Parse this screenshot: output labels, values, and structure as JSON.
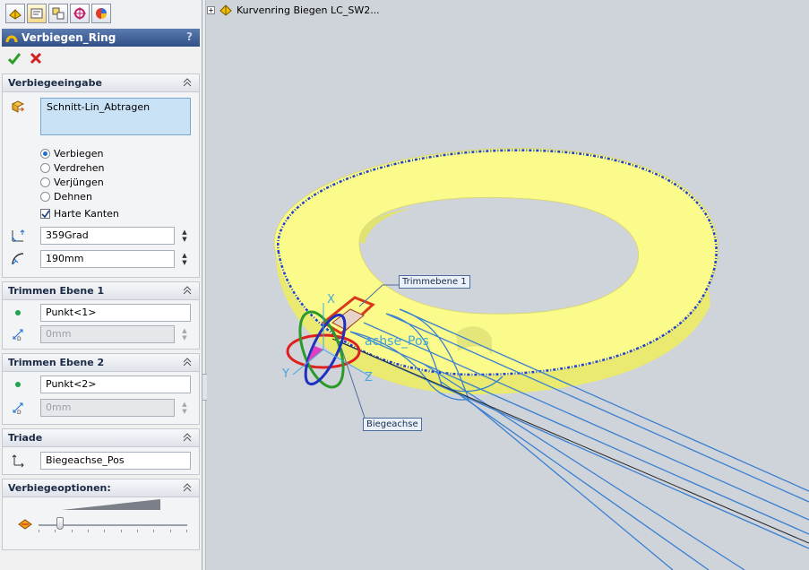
{
  "panel": {
    "title": "Verbiegen_Ring",
    "help": "?",
    "tabs": [
      "feature-manager",
      "property-manager",
      "configuration-manager",
      "dimxpert-manager",
      "display-manager"
    ],
    "groups": {
      "bend_input": {
        "title": "Verbiegeeingabe",
        "body_selection": "Schnitt-Lin_Abtragen",
        "options": [
          "Verbiegen",
          "Verdrehen",
          "Verjüngen",
          "Dehnen"
        ],
        "selected_option": "Verbiegen",
        "hard_edges_label": "Harte Kanten",
        "hard_edges_checked": true,
        "angle_value": "359Grad",
        "radius_value": "190mm"
      },
      "trim_plane_1": {
        "title": "Trimmen Ebene 1",
        "point": "Punkt<1>",
        "distance": "0mm"
      },
      "trim_plane_2": {
        "title": "Trimmen Ebene 2",
        "point": "Punkt<2>",
        "distance": "0mm"
      },
      "triad": {
        "title": "Triade",
        "reference": "Biegeachse_Pos"
      },
      "bend_options": {
        "title": "Verbiegeoptionen:",
        "accuracy_level": 0.15
      }
    }
  },
  "viewport": {
    "tree_label": "Kurvenring Biegen LC_SW2...",
    "callouts": {
      "trim_plane": "Trimmebene 1",
      "bend_axis": "Biegeachse"
    },
    "triad_label": "achse_Pos",
    "axis_labels": {
      "x": "X",
      "y": "Y",
      "z": "Z"
    }
  },
  "colors": {
    "title_bar": "#3a5a92",
    "ring_fill": "#fbfb8c",
    "ring_edge": "#1f3fd0",
    "sketch": "#3a80d0"
  }
}
